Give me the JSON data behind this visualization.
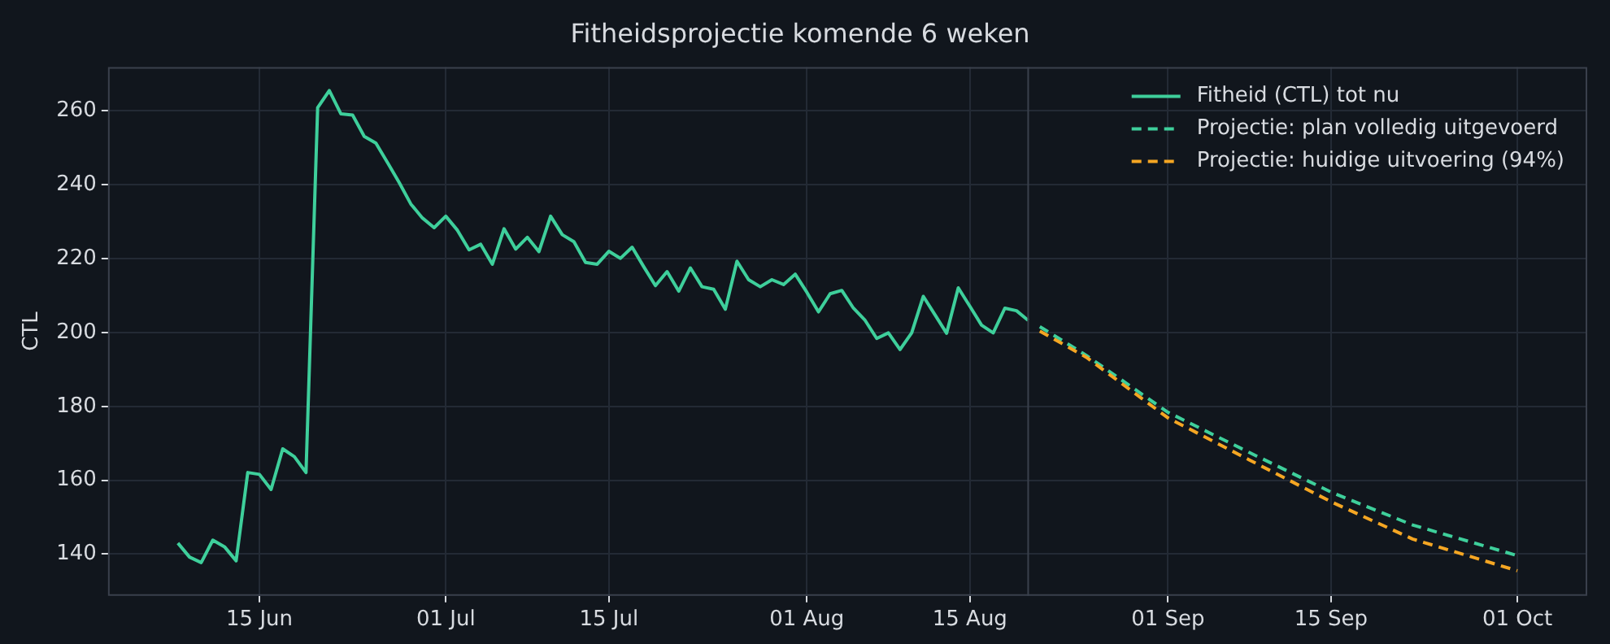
{
  "chart_data": {
    "type": "line",
    "title": "Fitheidsprojectie komende 6 weken",
    "ylabel": "CTL",
    "xlim": [
      "--06-02",
      "--10-07"
    ],
    "xticks": [
      {
        "value": "--06-15",
        "label": "15 Jun"
      },
      {
        "value": "--07-01",
        "label": "01 Jul"
      },
      {
        "value": "--07-15",
        "label": "15 Jul"
      },
      {
        "value": "--08-01",
        "label": "01 Aug"
      },
      {
        "value": "--08-15",
        "label": "15 Aug"
      },
      {
        "value": "--09-01",
        "label": "01 Sep"
      },
      {
        "value": "--09-15",
        "label": "15 Sep"
      },
      {
        "value": "--10-01",
        "label": "01 Oct"
      }
    ],
    "ylim": [
      128.7,
      271.9
    ],
    "yticks": [
      140,
      160,
      180,
      200,
      220,
      240,
      260
    ],
    "grid": true,
    "legend": "top right",
    "ref_lines": [
      {
        "axis": "x",
        "value": "--08-20",
        "label": null,
        "color": "#3a404c"
      }
    ],
    "series": [
      {
        "name": "Fitheid (CTL) tot nu",
        "color": "#3ecf9b",
        "line_style": "solid",
        "x": [
          "--06-08",
          "--06-09",
          "--06-10",
          "--06-11",
          "--06-12",
          "--06-13",
          "--06-14",
          "--06-15",
          "--06-16",
          "--06-17",
          "--06-18",
          "--06-19",
          "--06-20",
          "--06-21",
          "--06-22",
          "--06-23",
          "--06-24",
          "--06-25",
          "--06-26",
          "--06-27",
          "--06-28",
          "--06-29",
          "--06-30",
          "--07-01",
          "--07-02",
          "--07-03",
          "--07-04",
          "--07-05",
          "--07-06",
          "--07-07",
          "--07-08",
          "--07-09",
          "--07-10",
          "--07-11",
          "--07-12",
          "--07-13",
          "--07-14",
          "--07-15",
          "--07-16",
          "--07-17",
          "--07-18",
          "--07-19",
          "--07-20",
          "--07-21",
          "--07-22",
          "--07-23",
          "--07-24",
          "--07-25",
          "--07-26",
          "--07-27",
          "--07-28",
          "--07-29",
          "--07-30",
          "--07-31",
          "--08-01",
          "--08-02",
          "--08-03",
          "--08-04",
          "--08-05",
          "--08-06",
          "--08-07",
          "--08-08",
          "--08-09",
          "--08-10",
          "--08-11",
          "--08-12",
          "--08-13",
          "--08-14",
          "--08-15",
          "--08-16",
          "--08-17",
          "--08-18",
          "--08-19",
          "--08-20"
        ],
        "values": [
          143.0,
          139.2,
          137.7,
          143.8,
          142.0,
          138.2,
          162.1,
          161.6,
          157.5,
          168.5,
          166.4,
          162.1,
          260.9,
          265.5,
          259.2,
          258.9,
          253.1,
          251.3,
          246.0,
          240.6,
          234.8,
          231.0,
          228.4,
          231.5,
          227.7,
          222.4,
          223.9,
          218.5,
          228.1,
          222.6,
          225.8,
          221.9,
          231.5,
          226.5,
          224.6,
          219.0,
          218.5,
          222.0,
          220.1,
          223.1,
          217.8,
          212.7,
          216.5,
          211.2,
          217.5,
          212.4,
          211.7,
          206.3,
          219.3,
          214.3,
          212.4,
          214.3,
          213.0,
          215.8,
          210.9,
          205.6,
          210.5,
          211.4,
          206.6,
          203.3,
          198.4,
          199.9,
          195.4,
          199.9,
          209.8,
          204.8,
          199.8,
          212.1,
          207.1,
          202.0,
          199.9,
          206.6,
          205.9,
          203.3
        ]
      },
      {
        "name": "Projectie: plan volledig uitgevoerd",
        "color": "#3ecf9b",
        "line_style": "dashed",
        "x": [
          "--08-21",
          "--08-25",
          "--09-01",
          "--09-08",
          "--09-15",
          "--09-22",
          "--10-01"
        ],
        "values": [
          201.6,
          193.8,
          178.4,
          167.5,
          156.8,
          147.9,
          139.6
        ]
      },
      {
        "name": "Projectie: huidige uitvoering (94%)",
        "color": "#f5a623",
        "line_style": "dashed",
        "x": [
          "--08-21",
          "--08-25",
          "--09-01",
          "--09-08",
          "--09-15",
          "--09-22",
          "--10-01"
        ],
        "values": [
          200.4,
          193.3,
          176.9,
          165.5,
          154.2,
          144.1,
          135.5
        ]
      }
    ]
  }
}
